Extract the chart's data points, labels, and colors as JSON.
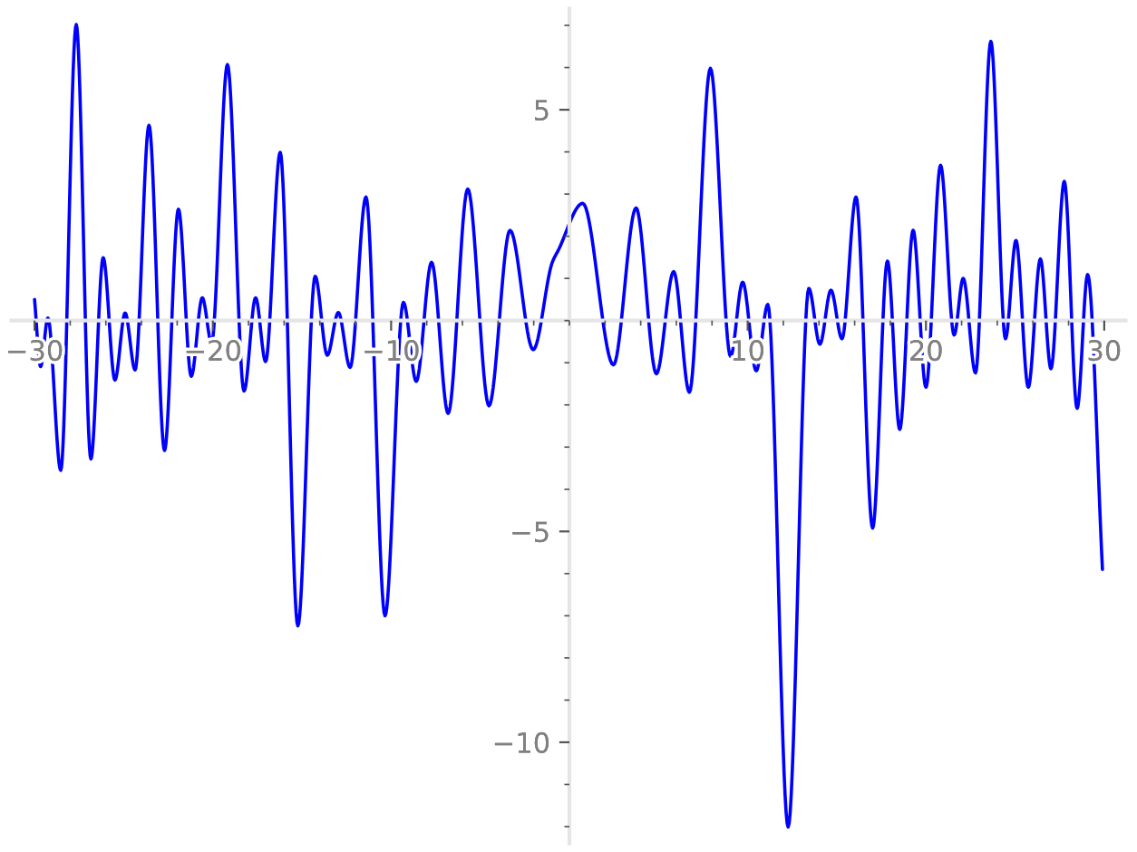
{
  "chart_data": {
    "type": "line",
    "x": [
      -30.0,
      -29.66,
      -29.25,
      -28.53,
      -27.66,
      -26.84,
      -26.15,
      -25.49,
      -24.92,
      -24.36,
      -23.58,
      -22.71,
      -21.93,
      -21.21,
      -20.59,
      -20.07,
      -19.18,
      -18.25,
      -17.6,
      -17.04,
      -16.22,
      -15.23,
      -14.26,
      -13.58,
      -12.96,
      -12.3,
      -11.41,
      -10.34,
      -9.31,
      -8.59,
      -7.73,
      -6.8,
      -5.7,
      -4.51,
      -3.33,
      -2.03,
      -0.96,
      -0.62,
      0.75,
      2.47,
      3.74,
      4.88,
      5.85,
      6.73,
      7.91,
      9.04,
      9.72,
      10.48,
      11.13,
      12.27,
      13.43,
      14.05,
      14.67,
      15.29,
      16.08,
      17.01,
      17.84,
      18.53,
      19.28,
      20.0,
      20.82,
      21.58,
      22.09,
      22.78,
      23.64,
      24.46,
      25.05,
      25.74,
      26.42,
      27.01,
      27.76,
      28.48,
      29.07,
      29.9
    ],
    "series": [
      {
        "color": "#0000ff",
        "values": [
          0.5,
          -1.09,
          0.06,
          -3.55,
          7.02,
          -3.28,
          1.49,
          -1.41,
          0.18,
          -1.17,
          4.63,
          -3.08,
          2.64,
          -1.32,
          0.54,
          -0.53,
          6.07,
          -1.67,
          0.54,
          -0.97,
          3.99,
          -7.24,
          1.05,
          -0.82,
          0.19,
          -1.11,
          2.93,
          -7.0,
          0.43,
          -1.44,
          1.38,
          -2.2,
          3.12,
          -2.02,
          2.14,
          -0.69,
          1.38,
          1.67,
          2.78,
          -1.05,
          2.67,
          -1.26,
          1.16,
          -1.7,
          5.98,
          -0.85,
          0.91,
          -1.19,
          0.38,
          -12.01,
          0.76,
          -0.56,
          0.72,
          -0.43,
          2.93,
          -4.92,
          1.41,
          -2.58,
          2.14,
          -1.58,
          3.68,
          -0.34,
          1.0,
          -1.24,
          6.62,
          -0.43,
          1.9,
          -1.58,
          1.46,
          -1.14,
          3.3,
          -2.08,
          1.09,
          -5.9
        ]
      }
    ],
    "xlim": [
      -31.3,
      31.2
    ],
    "ylim": [
      -12.4,
      7.4
    ],
    "xticks": [
      {
        "value": -30,
        "label": "−30"
      },
      {
        "value": -20,
        "label": "−20"
      },
      {
        "value": -10,
        "label": "−10"
      },
      10,
      20,
      30
    ],
    "yticks": [
      {
        "value": -10,
        "label": "−10"
      },
      {
        "value": -5,
        "label": "−5"
      },
      5
    ],
    "grid": false,
    "marker": "none",
    "line_style": "solid"
  }
}
